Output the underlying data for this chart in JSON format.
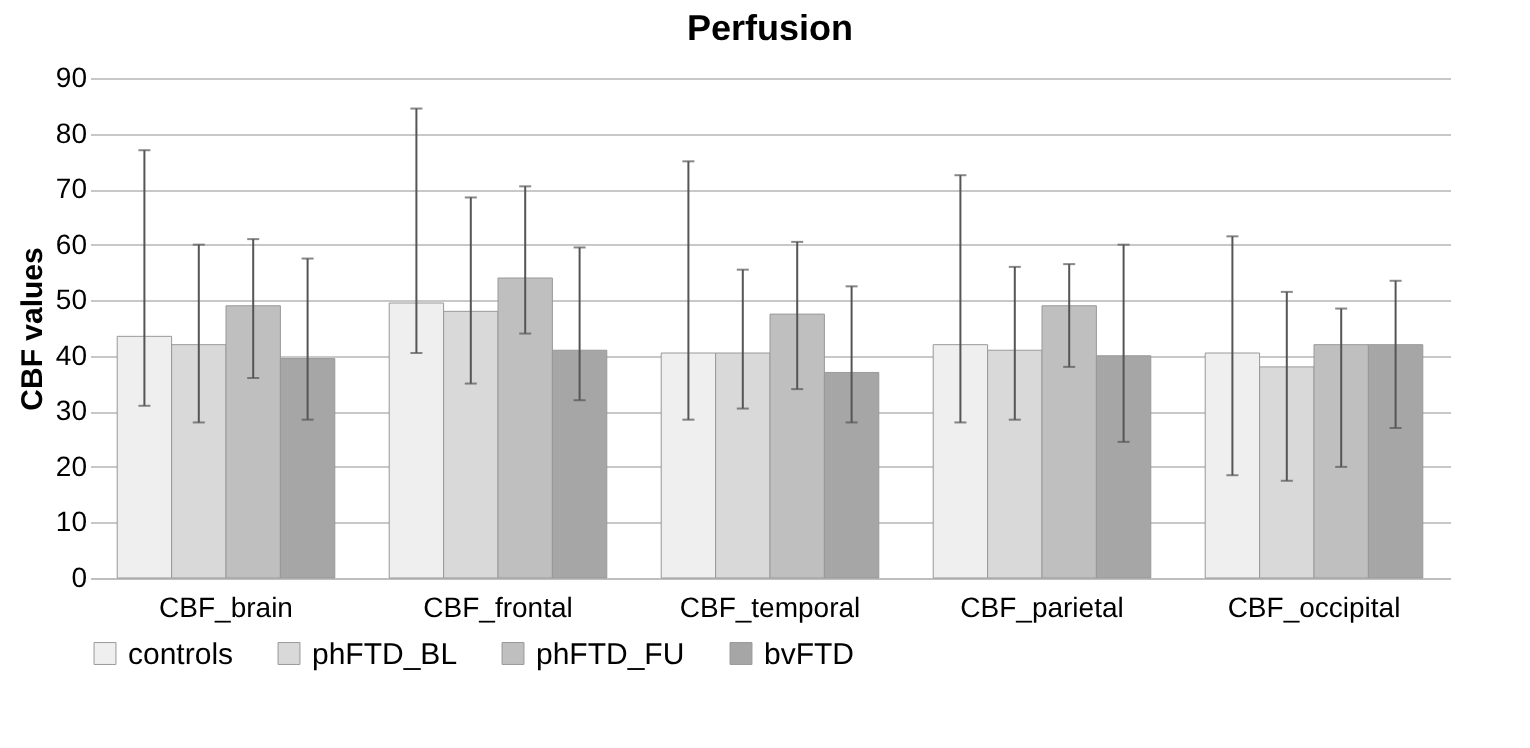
{
  "chart_data": {
    "type": "bar",
    "title": "Perfusion",
    "ylabel": "CBF values",
    "categories": [
      "CBF_brain",
      "CBF_frontal",
      "CBF_temporal",
      "CBF_parietal",
      "CBF_occipital"
    ],
    "series": [
      {
        "name": "controls",
        "color": "#efefef",
        "values": [
          43.5,
          49.5,
          40.5,
          42,
          40.5
        ],
        "errors": [
          [
            31,
            77
          ],
          [
            40.5,
            84.5
          ],
          [
            28.5,
            75
          ],
          [
            28,
            72.5
          ],
          [
            18.5,
            61.5
          ]
        ]
      },
      {
        "name": "phFTD_BL",
        "color": "#d9d9d9",
        "values": [
          42,
          48,
          40.5,
          41,
          38
        ],
        "errors": [
          [
            28,
            60
          ],
          [
            35,
            68.5
          ],
          [
            30.5,
            55.5
          ],
          [
            28.5,
            56
          ],
          [
            17.5,
            51.5
          ]
        ]
      },
      {
        "name": "phFTD_FU",
        "color": "#bfbfbf",
        "values": [
          49,
          54,
          47.5,
          49,
          42
        ],
        "errors": [
          [
            36,
            61
          ],
          [
            44,
            70.5
          ],
          [
            34,
            60.5
          ],
          [
            38,
            56.5
          ],
          [
            20,
            48.5
          ]
        ]
      },
      {
        "name": "bvFTD",
        "color": "#a6a6a6",
        "values": [
          39.5,
          41,
          37,
          40,
          42
        ],
        "errors": [
          [
            28.5,
            57.5
          ],
          [
            32,
            59.5
          ],
          [
            28,
            52.5
          ],
          [
            24.5,
            60
          ],
          [
            27,
            53.5
          ]
        ]
      }
    ],
    "ylim": [
      0,
      90
    ],
    "yticks": [
      0,
      10,
      20,
      30,
      40,
      50,
      60,
      70,
      80,
      90
    ],
    "grid": "y",
    "legend": "bottom"
  }
}
